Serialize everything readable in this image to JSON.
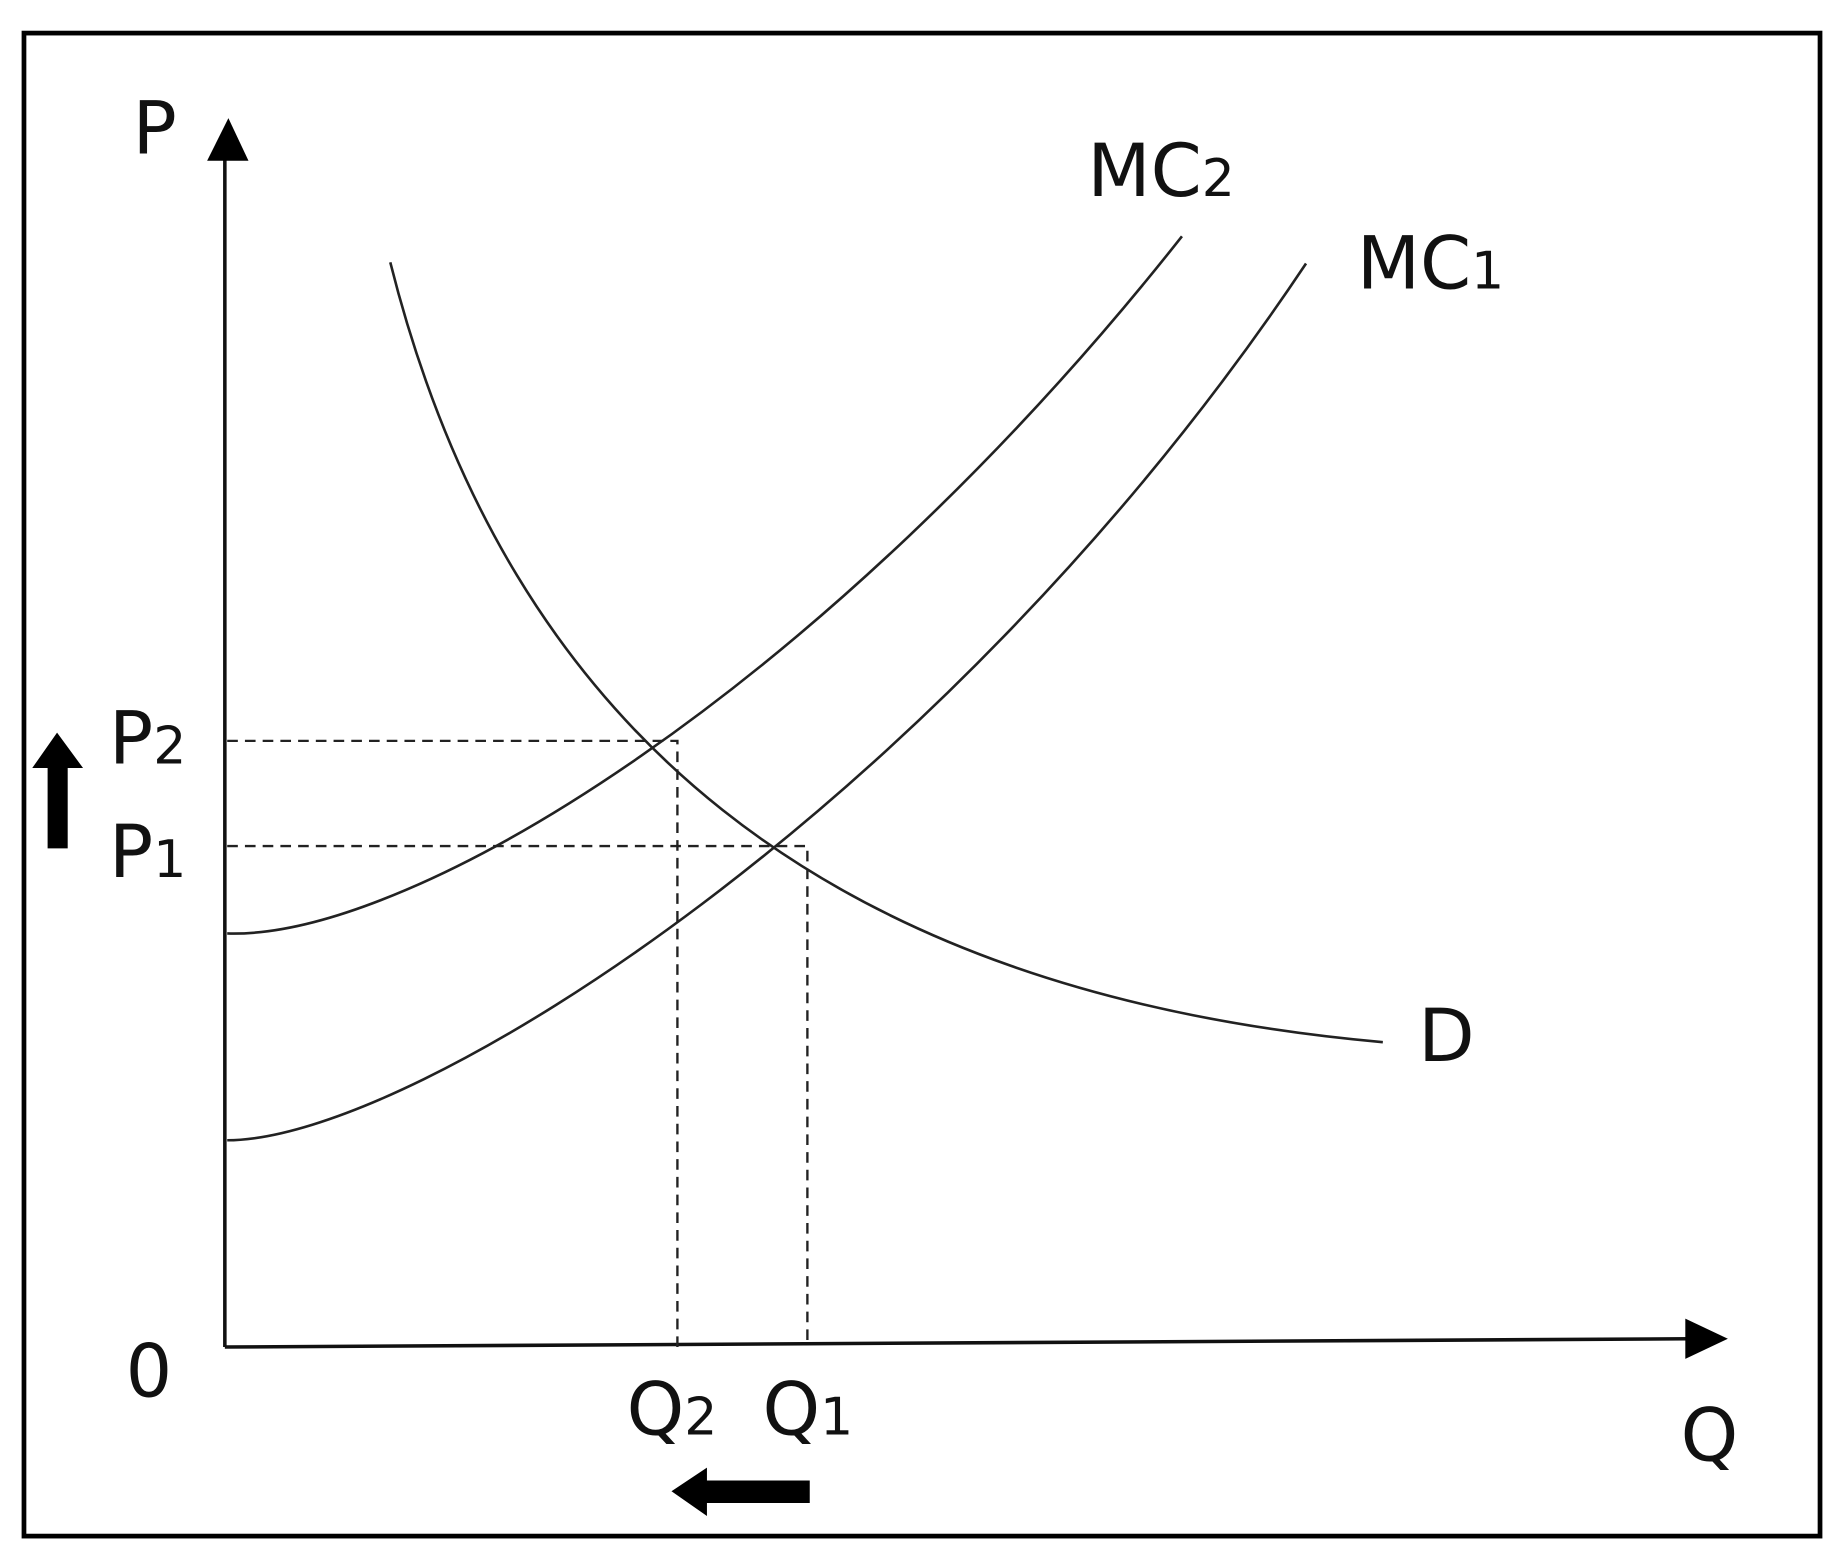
{
  "axes": {
    "y_label": "P",
    "x_label": "Q",
    "origin": "0"
  },
  "curves": [
    {
      "letter": "MC",
      "subscript": "2"
    },
    {
      "letter": "MC",
      "subscript": "1"
    },
    {
      "letter": "D"
    }
  ],
  "price_labels": [
    {
      "letter": "P",
      "subscript": "2"
    },
    {
      "letter": "P",
      "subscript": "1"
    }
  ],
  "quantity_labels": [
    {
      "letter": "Q",
      "subscript": "2"
    },
    {
      "letter": "Q",
      "subscript": "1"
    }
  ]
}
